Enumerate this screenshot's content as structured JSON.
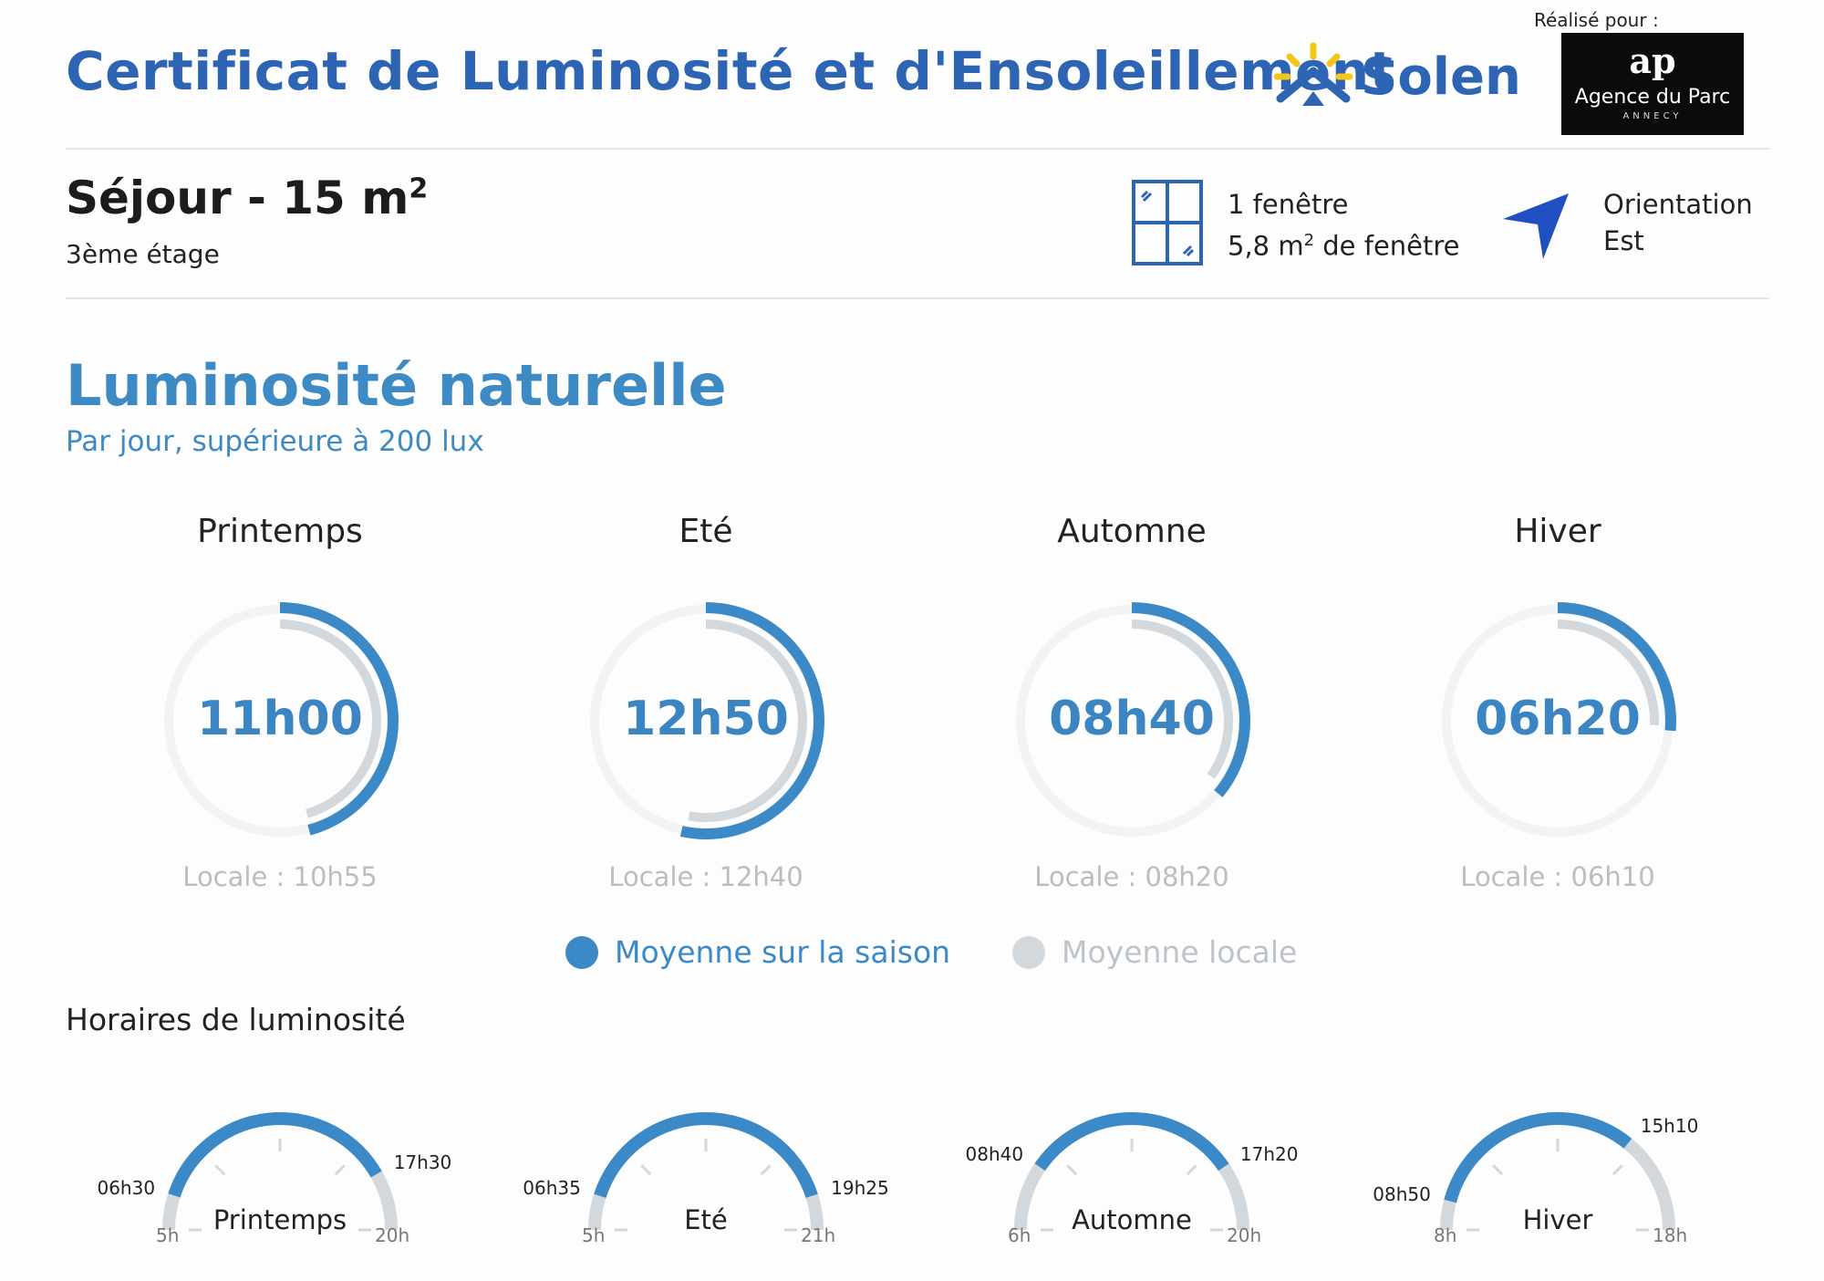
{
  "header": {
    "title": "Certificat de Luminosité et d'Ensoleillement",
    "brand": "Solen",
    "realise_pour": "Réalisé pour :",
    "agency_mark": "ap",
    "agency_name": "Agence du Parc",
    "agency_sub": "ANNECY"
  },
  "room": {
    "name": "Séjour - 15 m",
    "name_sup": "2",
    "floor": "3ème étage",
    "windows_count": "1 fenêtre",
    "window_area": "5,8 m",
    "window_area_sup": "2",
    "window_area_suffix": " de fenêtre",
    "orientation_label": "Orientation",
    "orientation_value": "Est"
  },
  "luminosite": {
    "title": "Luminosité naturelle",
    "subtitle": "Par jour, supérieure à 200 lux",
    "seasons": [
      {
        "name": "Printemps",
        "value": "11h00",
        "locale": "Locale : 10h55",
        "season_hours": 11.0,
        "local_hours": 10.92
      },
      {
        "name": "Eté",
        "value": "12h50",
        "locale": "Locale : 12h40",
        "season_hours": 12.83,
        "local_hours": 12.67
      },
      {
        "name": "Automne",
        "value": "08h40",
        "locale": "Locale : 08h20",
        "season_hours": 8.67,
        "local_hours": 8.33
      },
      {
        "name": "Hiver",
        "value": "06h20",
        "locale": "Locale : 06h10",
        "season_hours": 6.33,
        "local_hours": 6.17
      }
    ],
    "legend": {
      "season": "Moyenne sur la saison",
      "local": "Moyenne locale"
    },
    "colors": {
      "season": "#3b89c6",
      "local": "#d3d8dc",
      "track": "#f1f3f5"
    }
  },
  "horaires": {
    "title": "Horaires de luminosité",
    "gauges": [
      {
        "name": "Printemps",
        "start_label": "5h",
        "end_label": "20h",
        "range": [
          5,
          20
        ],
        "from": "06h30",
        "to": "17h30",
        "from_h": 6.5,
        "to_h": 17.5
      },
      {
        "name": "Eté",
        "start_label": "5h",
        "end_label": "21h",
        "range": [
          5,
          21
        ],
        "from": "06h35",
        "to": "19h25",
        "from_h": 6.58,
        "to_h": 19.42
      },
      {
        "name": "Automne",
        "start_label": "6h",
        "end_label": "20h",
        "range": [
          6,
          20
        ],
        "from": "08h40",
        "to": "17h20",
        "from_h": 8.67,
        "to_h": 17.33
      },
      {
        "name": "Hiver",
        "start_label": "8h",
        "end_label": "18h",
        "range": [
          8,
          18
        ],
        "from": "08h50",
        "to": "15h10",
        "from_h": 8.83,
        "to_h": 15.17
      }
    ]
  }
}
